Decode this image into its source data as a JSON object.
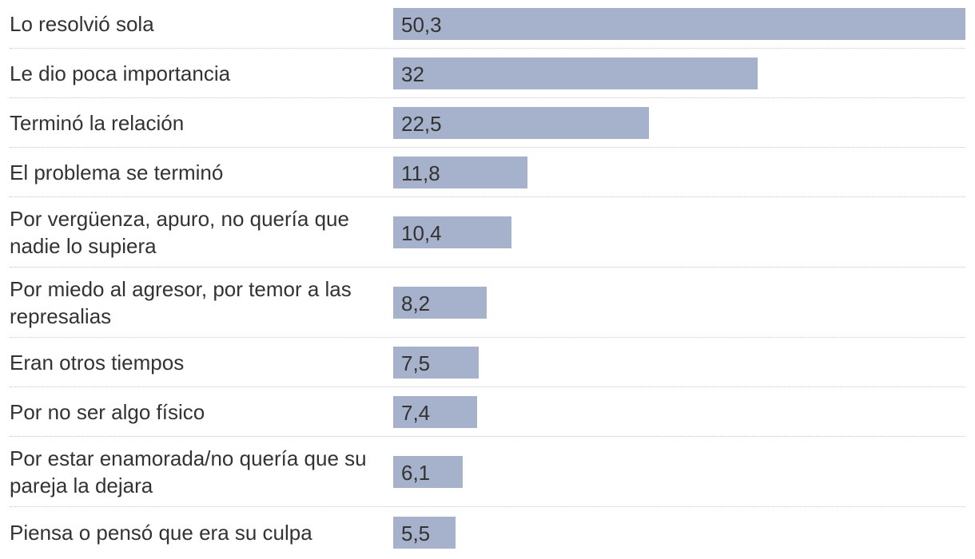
{
  "chart_data": {
    "type": "bar",
    "orientation": "horizontal",
    "title": "",
    "xlabel": "",
    "ylabel": "",
    "xlim": [
      0,
      50.3
    ],
    "categories": [
      "Lo resolvió sola",
      "Le dio poca importancia",
      "Terminó la relación",
      "El problema se terminó",
      "Por vergüenza, apuro, no quería que nadie lo supiera",
      "Por miedo al agresor, por temor a las represalias",
      "Eran otros tiempos",
      "Por no ser algo físico",
      "Por estar enamorada/no quería que su pareja la dejara",
      "Piensa o pensó que era su culpa"
    ],
    "values": [
      50.3,
      32,
      22.5,
      11.8,
      10.4,
      8.2,
      7.5,
      7.4,
      6.1,
      5.5
    ],
    "value_labels": [
      "50,3",
      "32",
      "22,5",
      "11,8",
      "10,4",
      "8,2",
      "7,5",
      "7,4",
      "6,1",
      "5,5"
    ],
    "bar_color": "#a6b1cb",
    "text_color": "#333333",
    "separator_color": "#c8c8c8"
  }
}
